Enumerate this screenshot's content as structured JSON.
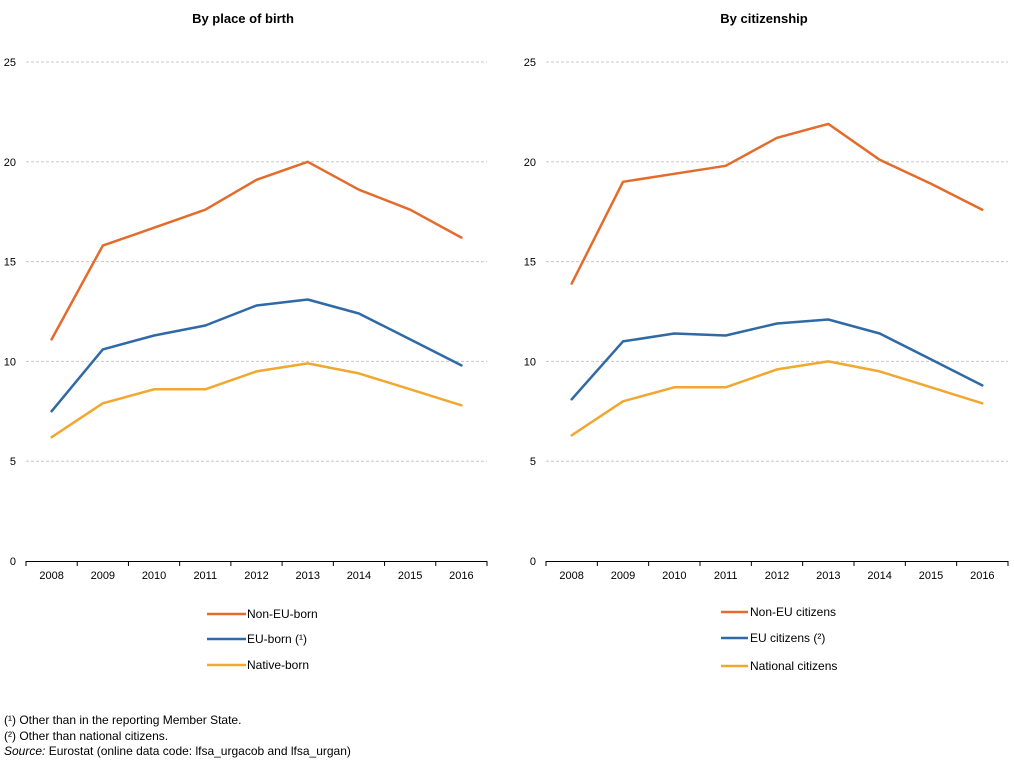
{
  "chart_data": [
    {
      "type": "line",
      "title": "By place of birth",
      "x": [
        "2008",
        "2009",
        "2010",
        "2011",
        "2012",
        "2013",
        "2014",
        "2015",
        "2016"
      ],
      "ylim": [
        0,
        25
      ],
      "yticks": [
        "0",
        "5",
        "10",
        "15",
        "20",
        "25"
      ],
      "grid": true,
      "legend_position": "bottom",
      "series": [
        {
          "name": "Non-EU-born",
          "color": "#e36c2d",
          "values": [
            11.1,
            15.8,
            16.7,
            17.6,
            19.1,
            20.0,
            18.6,
            17.6,
            16.2
          ]
        },
        {
          "name": "EU-born (¹)",
          "color": "#2f6aa6",
          "values": [
            7.5,
            10.6,
            11.3,
            11.8,
            12.8,
            13.1,
            12.4,
            11.1,
            9.8
          ]
        },
        {
          "name": "Native-born",
          "color": "#f0a830",
          "values": [
            6.2,
            7.9,
            8.6,
            8.6,
            9.5,
            9.9,
            9.4,
            8.6,
            7.8
          ]
        }
      ]
    },
    {
      "type": "line",
      "title": "By citizenship",
      "x": [
        "2008",
        "2009",
        "2010",
        "2011",
        "2012",
        "2013",
        "2014",
        "2015",
        "2016"
      ],
      "ylim": [
        0,
        25
      ],
      "yticks": [
        "0",
        "5",
        "10",
        "15",
        "20",
        "25"
      ],
      "grid": true,
      "legend_position": "bottom",
      "series": [
        {
          "name": "Non-EU citizens",
          "color": "#e36c2d",
          "values": [
            13.9,
            19.0,
            19.4,
            19.8,
            21.2,
            21.9,
            20.1,
            18.9,
            17.6
          ]
        },
        {
          "name": "EU citizens (²)",
          "color": "#2f6aa6",
          "values": [
            8.1,
            11.0,
            11.4,
            11.3,
            11.9,
            12.1,
            11.4,
            10.1,
            8.8
          ]
        },
        {
          "name": "National citizens",
          "color": "#f0a830",
          "values": [
            6.3,
            8.0,
            8.7,
            8.7,
            9.6,
            10.0,
            9.5,
            8.7,
            7.9
          ]
        }
      ]
    }
  ],
  "footnotes": {
    "note1": "(¹) Other than in the reporting Member State.",
    "note2": "(²) Other than national citizens.",
    "source_label": "Source:",
    "source_text": " Eurostat (online data code: lfsa_urgacob and lfsa_urgan)"
  }
}
